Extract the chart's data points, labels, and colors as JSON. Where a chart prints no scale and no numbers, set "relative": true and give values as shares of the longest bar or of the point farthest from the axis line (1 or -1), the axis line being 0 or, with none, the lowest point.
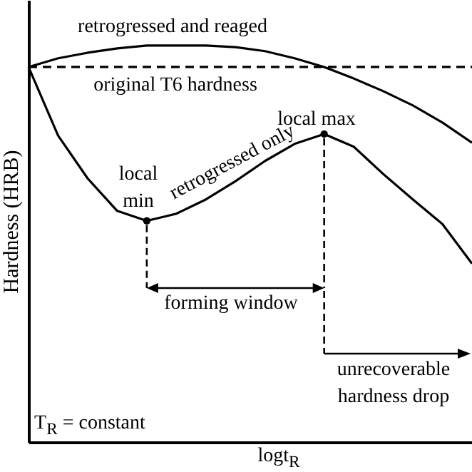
{
  "chart_data": {
    "type": "line",
    "relative": true,
    "ylabel": "Hardness (HRB)",
    "xlabel": "logt$_{R}$",
    "categories": [
      null,
      null,
      null,
      null,
      null,
      null,
      null,
      null,
      null,
      null,
      null,
      null,
      null,
      null,
      null,
      null
    ],
    "series": [
      {
        "name": "retrogressed and reaged",
        "color": "#000000",
        "values": [
          0.946,
          0.968,
          0.982,
          0.993,
          1,
          1,
          1,
          0.996,
          0.986,
          0.968,
          0.946,
          0.917,
          0.885,
          0.849,
          0.806,
          0.755
        ]
      },
      {
        "name": "original T6 hardness",
        "color": "#000000",
        "line_style": "dashed",
        "values": [
          0.946,
          0.946,
          0.946,
          0.946,
          0.946,
          0.946,
          0.946,
          0.946,
          0.946,
          0.946,
          0.946,
          0.946,
          0.946,
          0.946,
          0.946,
          0.946
        ]
      },
      {
        "name": "retrogressed only",
        "color": "#000000",
        "values": [
          0.946,
          0.773,
          0.665,
          0.583,
          0.558,
          0.576,
          0.612,
          0.658,
          0.709,
          0.752,
          0.777,
          0.745,
          0.676,
          0.612,
          0.55,
          0.45
        ]
      }
    ],
    "annotations": [
      "local min",
      "local max",
      "forming window",
      "unrecoverable hardness drop",
      "T$_{R}$ = constant"
    ]
  }
}
